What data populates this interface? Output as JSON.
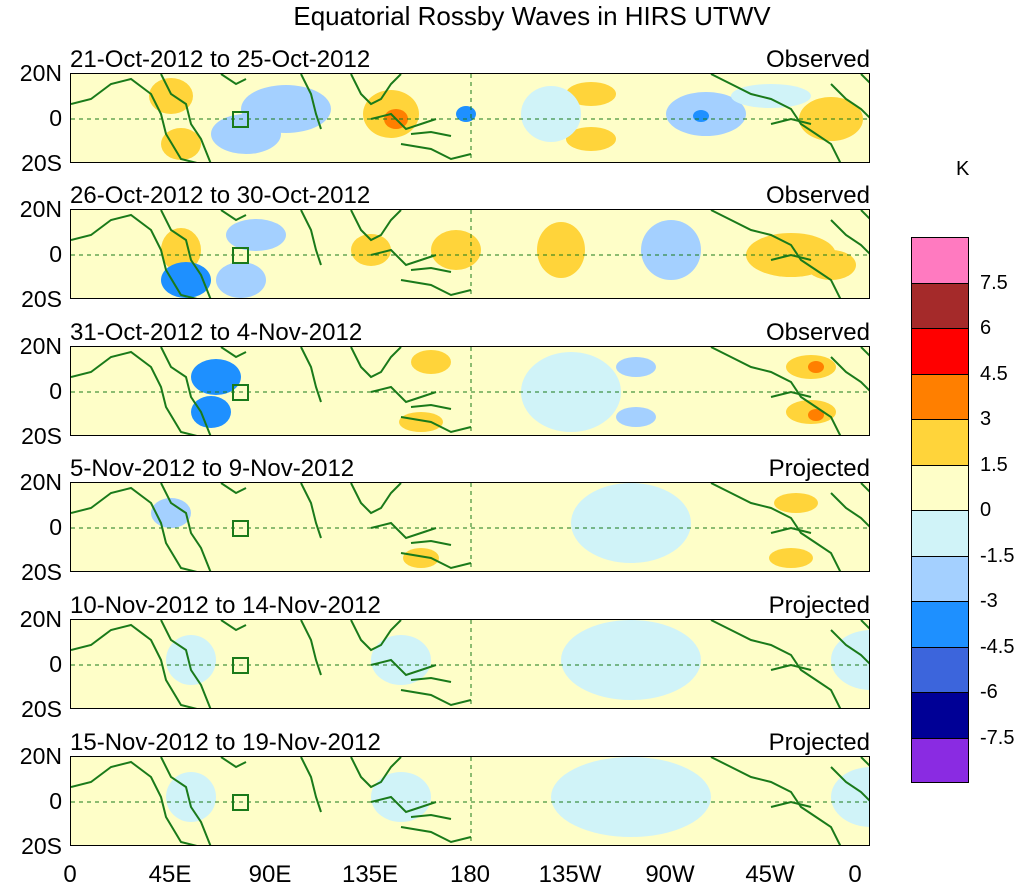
{
  "title": "Equatorial Rossby Waves in HIRS UTWV",
  "panels": [
    {
      "date": "21-Oct-2012 to 25-Oct-2012",
      "status": "Observed"
    },
    {
      "date": "26-Oct-2012 to 30-Oct-2012",
      "status": "Observed"
    },
    {
      "date": "31-Oct-2012 to 4-Nov-2012",
      "status": "Observed"
    },
    {
      "date": "5-Nov-2012 to 9-Nov-2012",
      "status": "Projected"
    },
    {
      "date": "10-Nov-2012 to 14-Nov-2012",
      "status": "Projected"
    },
    {
      "date": "15-Nov-2012 to 19-Nov-2012",
      "status": "Projected"
    }
  ],
  "y_ticks": [
    "20N",
    "0",
    "20S"
  ],
  "x_ticks": [
    "0",
    "45E",
    "90E",
    "135E",
    "180",
    "135W",
    "90W",
    "45W",
    "0"
  ],
  "colorbar": {
    "unit": "K",
    "labels": [
      "7.5",
      "6",
      "4.5",
      "3",
      "1.5",
      "0",
      "-1.5",
      "-3",
      "-4.5",
      "-6",
      "-7.5"
    ],
    "colors": [
      "#ff7ac0",
      "#a52a2a",
      "#ff0000",
      "#ff7f00",
      "#ffd43a",
      "#fefec8",
      "#d0f3f8",
      "#a4d0ff",
      "#1e90ff",
      "#3c65dc",
      "#000096",
      "#8a2be2"
    ]
  },
  "colors": {
    "coast": "#1a7a1a",
    "grid": "#1a7a1a"
  }
}
